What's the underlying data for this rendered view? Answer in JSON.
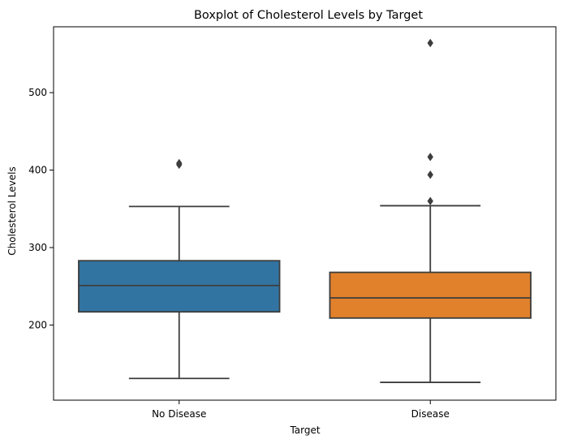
{
  "chart_data": {
    "type": "boxplot",
    "title": "Boxplot of Cholesterol Levels by Target",
    "xlabel": "Target",
    "ylabel": "Cholesterol Levels",
    "ylim": [
      103,
      585
    ],
    "yticks": [
      200,
      300,
      400,
      500
    ],
    "ytick_labels": [
      "200",
      "300",
      "400",
      "500"
    ],
    "grid": false,
    "categories": [
      "No Disease",
      "Disease"
    ],
    "boxes": [
      {
        "category": "No Disease",
        "color": "#3274a1",
        "whisker_low": 131,
        "q1": 217,
        "median": 251,
        "q3": 283,
        "whisker_high": 353,
        "outliers": [
          407,
          409
        ]
      },
      {
        "category": "Disease",
        "color": "#e1812c",
        "whisker_low": 126,
        "q1": 209,
        "median": 235,
        "q3": 268,
        "whisker_high": 354,
        "outliers": [
          360,
          394,
          417,
          564
        ]
      }
    ]
  }
}
